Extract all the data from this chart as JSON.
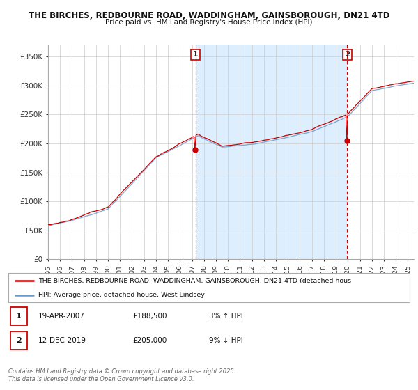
{
  "title_line1": "THE BIRCHES, REDBOURNE ROAD, WADDINGHAM, GAINSBOROUGH, DN21 4TD",
  "title_line2": "Price paid vs. HM Land Registry's House Price Index (HPI)",
  "yticks": [
    0,
    50000,
    100000,
    150000,
    200000,
    250000,
    300000,
    350000
  ],
  "ytick_labels": [
    "£0",
    "£50K",
    "£100K",
    "£150K",
    "£200K",
    "£250K",
    "£300K",
    "£350K"
  ],
  "xmin": 1995.0,
  "xmax": 2025.5,
  "ymin": 0,
  "ymax": 370000,
  "marker1_x": 2007.29,
  "marker1_y": 188500,
  "marker1_label": "1",
  "marker2_x": 2019.95,
  "marker2_y": 205000,
  "marker2_label": "2",
  "legend_red": "THE BIRCHES, REDBOURNE ROAD, WADDINGHAM, GAINSBOROUGH, DN21 4TD (detached hous",
  "legend_blue": "HPI: Average price, detached house, West Lindsey",
  "ann1_num": "1",
  "ann1_date": "19-APR-2007",
  "ann1_price": "£188,500",
  "ann1_change": "3% ↑ HPI",
  "ann2_num": "2",
  "ann2_date": "12-DEC-2019",
  "ann2_price": "£205,000",
  "ann2_change": "9% ↓ HPI",
  "copyright": "Contains HM Land Registry data © Crown copyright and database right 2025.\nThis data is licensed under the Open Government Licence v3.0.",
  "red_color": "#cc0000",
  "blue_color": "#6699cc",
  "shade_color": "#ddeeff",
  "bg_color": "#ffffff",
  "grid_color": "#cccccc",
  "dot_color": "#cc0000"
}
